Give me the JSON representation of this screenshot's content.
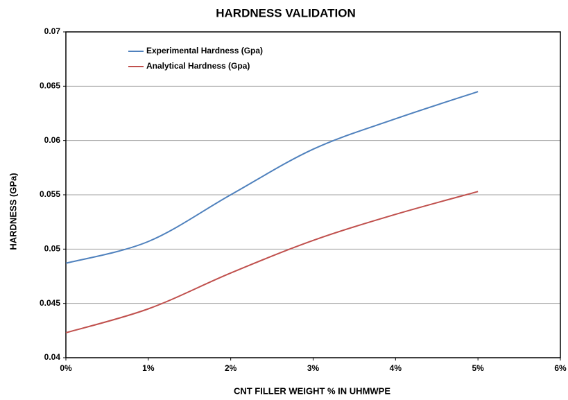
{
  "chart_data": {
    "type": "line",
    "title": "HARDNESS VALIDATION",
    "x_label": "CNT FILLER WEIGHT % IN UHMWPE",
    "y_label": "HARDNESS (GPa)",
    "x": [
      0,
      1,
      2,
      3,
      4,
      5
    ],
    "series": [
      {
        "name": "Experimental Hardness (Gpa)",
        "color": "#4f81bd",
        "values": [
          0.0487,
          0.0507,
          0.055,
          0.0592,
          0.062,
          0.0645
        ]
      },
      {
        "name": "Analytical Hardness (Gpa)",
        "color": "#c0504d",
        "values": [
          0.0423,
          0.0445,
          0.0478,
          0.0508,
          0.0532,
          0.0553
        ]
      }
    ],
    "xlim": [
      0,
      6
    ],
    "xticks": [
      {
        "value": 0,
        "label": "0%"
      },
      {
        "value": 1,
        "label": "1%"
      },
      {
        "value": 2,
        "label": "2%"
      },
      {
        "value": 3,
        "label": "3%"
      },
      {
        "value": 4,
        "label": "4%"
      },
      {
        "value": 5,
        "label": "5%"
      },
      {
        "value": 6,
        "label": "6%"
      }
    ],
    "ylim": [
      0.04,
      0.07
    ],
    "yticks": [
      0.04,
      0.045,
      0.05,
      0.055,
      0.06,
      0.065,
      0.07
    ],
    "grid": true,
    "legend": "upper left"
  }
}
